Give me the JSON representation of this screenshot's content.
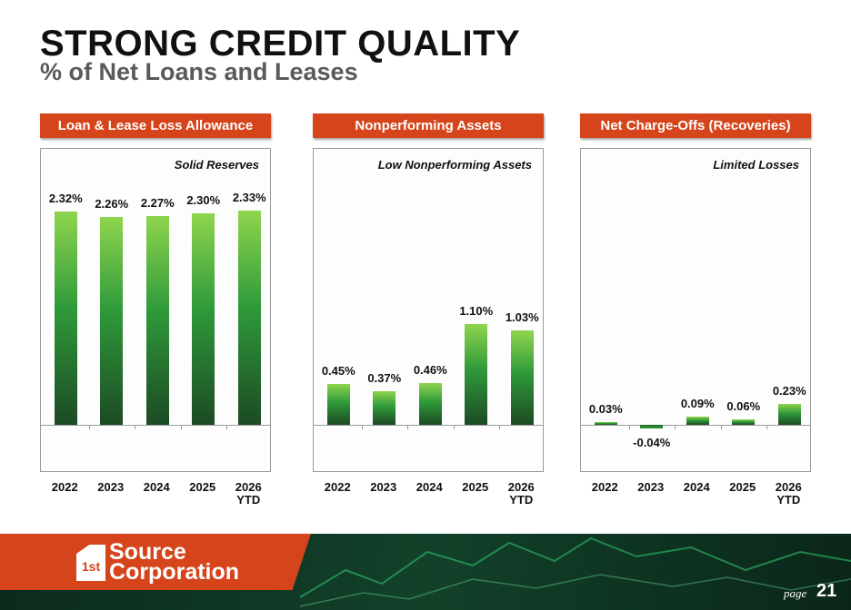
{
  "title": "STRONG CREDIT QUALITY",
  "subtitle": "% of Net Loans and Leases",
  "chart_data": [
    {
      "type": "bar",
      "title": "Loan & Lease Loss Allowance",
      "subtitle": "Solid Reserves",
      "categories": [
        "2022",
        "2023",
        "2024",
        "2025",
        "2026 YTD"
      ],
      "values": [
        2.32,
        2.26,
        2.27,
        2.3,
        2.33
      ],
      "value_labels": [
        "2.32%",
        "2.26%",
        "2.27%",
        "2.30%",
        "2.33%"
      ],
      "ylim": [
        -0.5,
        3.0
      ],
      "color": "#2e9a3a"
    },
    {
      "type": "bar",
      "title": "Nonperforming Assets",
      "subtitle": "Low Nonperforming Assets",
      "categories": [
        "2022",
        "2023",
        "2024",
        "2025",
        "2026 YTD"
      ],
      "values": [
        0.45,
        0.37,
        0.46,
        1.1,
        1.03
      ],
      "value_labels": [
        "0.45%",
        "0.37%",
        "0.46%",
        "1.10%",
        "1.03%"
      ],
      "ylim": [
        -0.5,
        3.0
      ],
      "color": "#2e9a3a"
    },
    {
      "type": "bar",
      "title": "Net Charge-Offs (Recoveries)",
      "subtitle": "Limited Losses",
      "categories": [
        "2022",
        "2023",
        "2024",
        "2025",
        "2026 YTD"
      ],
      "values": [
        0.03,
        -0.04,
        0.09,
        0.06,
        0.23
      ],
      "value_labels": [
        "0.03%",
        "-0.04%",
        "0.09%",
        "0.06%",
        "0.23%"
      ],
      "ylim": [
        -0.5,
        3.0
      ],
      "color": "#2e9a3a"
    }
  ],
  "logo": {
    "mark": "1st",
    "line1": "Source",
    "line2": "Corporation"
  },
  "page": {
    "label": "page",
    "number": "21"
  }
}
